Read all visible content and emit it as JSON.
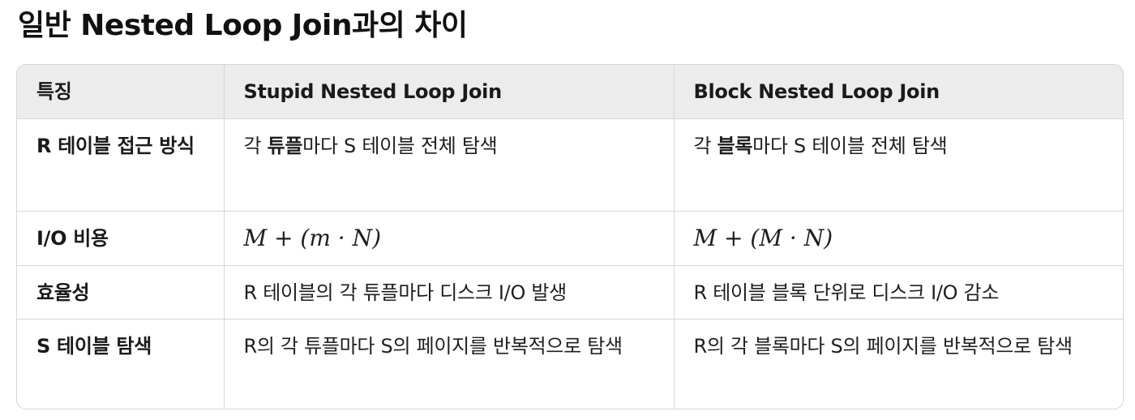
{
  "title": "일반 Nested Loop Join과의 차이",
  "table": {
    "headers": [
      "특징",
      "Stupid Nested Loop Join",
      "Block Nested Loop Join"
    ],
    "rows": [
      {
        "feature": "R 테이블 접근 방식",
        "stupid": {
          "pre": "각 ",
          "bold": "튜플",
          "post": "마다 S 테이블 전체 탐색"
        },
        "block": {
          "pre": "각 ",
          "bold": "블록",
          "post": "마다 S 테이블 전체 탐색"
        }
      },
      {
        "feature": "I/O 비용",
        "stupid": "M + (m · N)",
        "block": "M + (M · N)"
      },
      {
        "feature": "효율성",
        "stupid": "R 테이블의 각 튜플마다 디스크 I/O 발생",
        "block": "R 테이블 블록 단위로 디스크 I/O 감소"
      },
      {
        "feature": "S 테이블 탐색",
        "stupid": "R의 각 튜플마다 S의 페이지를 반복적으로 탐색",
        "block": "R의 각 블록마다 S의 페이지를 반복적으로 탐색"
      }
    ]
  }
}
